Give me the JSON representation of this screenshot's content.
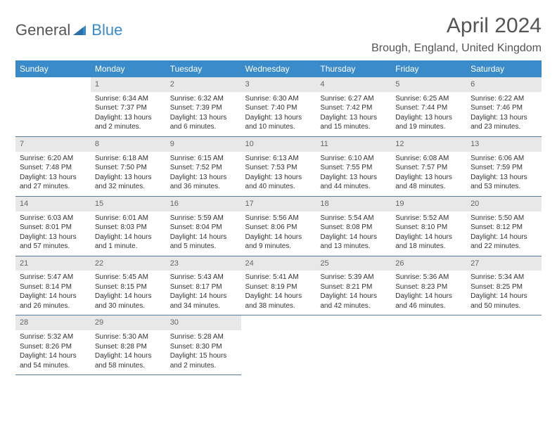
{
  "logo": {
    "general": "General",
    "blue": "Blue"
  },
  "title": "April 2024",
  "location": "Brough, England, United Kingdom",
  "colors": {
    "header_bg": "#3a8bc9",
    "header_text": "#ffffff",
    "daynum_bg": "#e8e8e8",
    "daynum_text": "#666666",
    "body_text": "#333333",
    "divider": "#5a7a99"
  },
  "dayNames": [
    "Sunday",
    "Monday",
    "Tuesday",
    "Wednesday",
    "Thursday",
    "Friday",
    "Saturday"
  ],
  "weeks": [
    [
      {
        "n": "",
        "sr": "",
        "ss": "",
        "dl": ""
      },
      {
        "n": "1",
        "sr": "Sunrise: 6:34 AM",
        "ss": "Sunset: 7:37 PM",
        "dl": "Daylight: 13 hours and 2 minutes."
      },
      {
        "n": "2",
        "sr": "Sunrise: 6:32 AM",
        "ss": "Sunset: 7:39 PM",
        "dl": "Daylight: 13 hours and 6 minutes."
      },
      {
        "n": "3",
        "sr": "Sunrise: 6:30 AM",
        "ss": "Sunset: 7:40 PM",
        "dl": "Daylight: 13 hours and 10 minutes."
      },
      {
        "n": "4",
        "sr": "Sunrise: 6:27 AM",
        "ss": "Sunset: 7:42 PM",
        "dl": "Daylight: 13 hours and 15 minutes."
      },
      {
        "n": "5",
        "sr": "Sunrise: 6:25 AM",
        "ss": "Sunset: 7:44 PM",
        "dl": "Daylight: 13 hours and 19 minutes."
      },
      {
        "n": "6",
        "sr": "Sunrise: 6:22 AM",
        "ss": "Sunset: 7:46 PM",
        "dl": "Daylight: 13 hours and 23 minutes."
      }
    ],
    [
      {
        "n": "7",
        "sr": "Sunrise: 6:20 AM",
        "ss": "Sunset: 7:48 PM",
        "dl": "Daylight: 13 hours and 27 minutes."
      },
      {
        "n": "8",
        "sr": "Sunrise: 6:18 AM",
        "ss": "Sunset: 7:50 PM",
        "dl": "Daylight: 13 hours and 32 minutes."
      },
      {
        "n": "9",
        "sr": "Sunrise: 6:15 AM",
        "ss": "Sunset: 7:52 PM",
        "dl": "Daylight: 13 hours and 36 minutes."
      },
      {
        "n": "10",
        "sr": "Sunrise: 6:13 AM",
        "ss": "Sunset: 7:53 PM",
        "dl": "Daylight: 13 hours and 40 minutes."
      },
      {
        "n": "11",
        "sr": "Sunrise: 6:10 AM",
        "ss": "Sunset: 7:55 PM",
        "dl": "Daylight: 13 hours and 44 minutes."
      },
      {
        "n": "12",
        "sr": "Sunrise: 6:08 AM",
        "ss": "Sunset: 7:57 PM",
        "dl": "Daylight: 13 hours and 48 minutes."
      },
      {
        "n": "13",
        "sr": "Sunrise: 6:06 AM",
        "ss": "Sunset: 7:59 PM",
        "dl": "Daylight: 13 hours and 53 minutes."
      }
    ],
    [
      {
        "n": "14",
        "sr": "Sunrise: 6:03 AM",
        "ss": "Sunset: 8:01 PM",
        "dl": "Daylight: 13 hours and 57 minutes."
      },
      {
        "n": "15",
        "sr": "Sunrise: 6:01 AM",
        "ss": "Sunset: 8:03 PM",
        "dl": "Daylight: 14 hours and 1 minute."
      },
      {
        "n": "16",
        "sr": "Sunrise: 5:59 AM",
        "ss": "Sunset: 8:04 PM",
        "dl": "Daylight: 14 hours and 5 minutes."
      },
      {
        "n": "17",
        "sr": "Sunrise: 5:56 AM",
        "ss": "Sunset: 8:06 PM",
        "dl": "Daylight: 14 hours and 9 minutes."
      },
      {
        "n": "18",
        "sr": "Sunrise: 5:54 AM",
        "ss": "Sunset: 8:08 PM",
        "dl": "Daylight: 14 hours and 13 minutes."
      },
      {
        "n": "19",
        "sr": "Sunrise: 5:52 AM",
        "ss": "Sunset: 8:10 PM",
        "dl": "Daylight: 14 hours and 18 minutes."
      },
      {
        "n": "20",
        "sr": "Sunrise: 5:50 AM",
        "ss": "Sunset: 8:12 PM",
        "dl": "Daylight: 14 hours and 22 minutes."
      }
    ],
    [
      {
        "n": "21",
        "sr": "Sunrise: 5:47 AM",
        "ss": "Sunset: 8:14 PM",
        "dl": "Daylight: 14 hours and 26 minutes."
      },
      {
        "n": "22",
        "sr": "Sunrise: 5:45 AM",
        "ss": "Sunset: 8:15 PM",
        "dl": "Daylight: 14 hours and 30 minutes."
      },
      {
        "n": "23",
        "sr": "Sunrise: 5:43 AM",
        "ss": "Sunset: 8:17 PM",
        "dl": "Daylight: 14 hours and 34 minutes."
      },
      {
        "n": "24",
        "sr": "Sunrise: 5:41 AM",
        "ss": "Sunset: 8:19 PM",
        "dl": "Daylight: 14 hours and 38 minutes."
      },
      {
        "n": "25",
        "sr": "Sunrise: 5:39 AM",
        "ss": "Sunset: 8:21 PM",
        "dl": "Daylight: 14 hours and 42 minutes."
      },
      {
        "n": "26",
        "sr": "Sunrise: 5:36 AM",
        "ss": "Sunset: 8:23 PM",
        "dl": "Daylight: 14 hours and 46 minutes."
      },
      {
        "n": "27",
        "sr": "Sunrise: 5:34 AM",
        "ss": "Sunset: 8:25 PM",
        "dl": "Daylight: 14 hours and 50 minutes."
      }
    ],
    [
      {
        "n": "28",
        "sr": "Sunrise: 5:32 AM",
        "ss": "Sunset: 8:26 PM",
        "dl": "Daylight: 14 hours and 54 minutes."
      },
      {
        "n": "29",
        "sr": "Sunrise: 5:30 AM",
        "ss": "Sunset: 8:28 PM",
        "dl": "Daylight: 14 hours and 58 minutes."
      },
      {
        "n": "30",
        "sr": "Sunrise: 5:28 AM",
        "ss": "Sunset: 8:30 PM",
        "dl": "Daylight: 15 hours and 2 minutes."
      },
      {
        "n": "",
        "sr": "",
        "ss": "",
        "dl": ""
      },
      {
        "n": "",
        "sr": "",
        "ss": "",
        "dl": ""
      },
      {
        "n": "",
        "sr": "",
        "ss": "",
        "dl": ""
      },
      {
        "n": "",
        "sr": "",
        "ss": "",
        "dl": ""
      }
    ]
  ]
}
